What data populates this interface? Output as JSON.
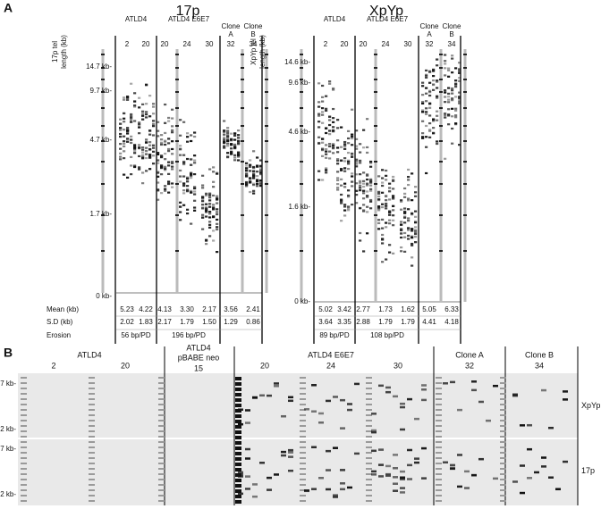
{
  "panel_a": {
    "label": "A",
    "gels": [
      {
        "title": "17p",
        "axis_label": [
          "17p tel",
          "length (kb)"
        ],
        "groups": [
          {
            "label": [
              "ATLD4"
            ],
            "lanes": [
              "2",
              "20"
            ]
          },
          {
            "label": [
              "ATLD4 E6E7"
            ],
            "lanes": [
              "20",
              "24",
              "30"
            ]
          },
          {
            "label": [
              "Clone",
              "A"
            ],
            "lanes": [
              "32"
            ]
          },
          {
            "label": [
              "Clone",
              "B"
            ],
            "lanes": [
              "34"
            ]
          }
        ],
        "size_markers": [
          "14.7 kb-",
          "9.7 kb-",
          "4.7 kb-",
          "1.7 kb-",
          "0 kb-"
        ],
        "stats": {
          "row_labels": [
            "Mean (kb)",
            "S.D (kb)",
            "Erosion"
          ],
          "mean": [
            "5.23",
            "4.22",
            "4.13",
            "3.30",
            "2.17",
            "3.56",
            "2.41"
          ],
          "sd": [
            "2.02",
            "1.83",
            "2.17",
            "1.79",
            "1.50",
            "1.29",
            "0.86"
          ],
          "erosion": [
            "56 bp/PD",
            "196 bp/PD"
          ]
        }
      },
      {
        "title": "XpYp",
        "axis_label": [
          "XpYp tel",
          "length (kb)"
        ],
        "groups": [
          {
            "label": [
              "ATLD4"
            ],
            "lanes": [
              "2",
              "20"
            ]
          },
          {
            "label": [
              "ATLD4 E6E7"
            ],
            "lanes": [
              "20",
              "24",
              "30"
            ]
          },
          {
            "label": [
              "Clone",
              "A"
            ],
            "lanes": [
              "32"
            ]
          },
          {
            "label": [
              "Clone",
              "B"
            ],
            "lanes": [
              "34"
            ]
          }
        ],
        "size_markers": [
          "14.6 kb-",
          "9.6 kb-",
          "4.6 kb-",
          "1.6 kb-",
          "0 kb-"
        ],
        "stats": {
          "mean": [
            "5.02",
            "3.42",
            "2.77",
            "1.73",
            "1.62",
            "5.05",
            "6.33"
          ],
          "sd": [
            "3.64",
            "3.35",
            "2.88",
            "1.79",
            "1.79",
            "4.41",
            "4.18"
          ],
          "erosion": [
            "89 bp/PD",
            "108 bp/PD"
          ]
        }
      }
    ]
  },
  "panel_b": {
    "label": "B",
    "groups": [
      {
        "label": [
          "ATLD4"
        ],
        "lanes": [
          "2",
          "20"
        ]
      },
      {
        "label": [
          "ATLD4",
          "pBABE neo"
        ],
        "lanes": [
          "15"
        ]
      },
      {
        "label": [
          "ATLD4 E6E7"
        ],
        "lanes": [
          "20",
          "24",
          "30"
        ]
      },
      {
        "label": [
          "Clone A"
        ],
        "lanes": [
          "32"
        ]
      },
      {
        "label": [
          "Clone B"
        ],
        "lanes": [
          "34"
        ]
      }
    ],
    "rows": [
      {
        "label": "XpYp",
        "size_markers": [
          "7 kb-",
          "2 kb-"
        ]
      },
      {
        "label": "17p",
        "size_markers": [
          "7 kb-",
          "2 kb-"
        ]
      }
    ]
  }
}
